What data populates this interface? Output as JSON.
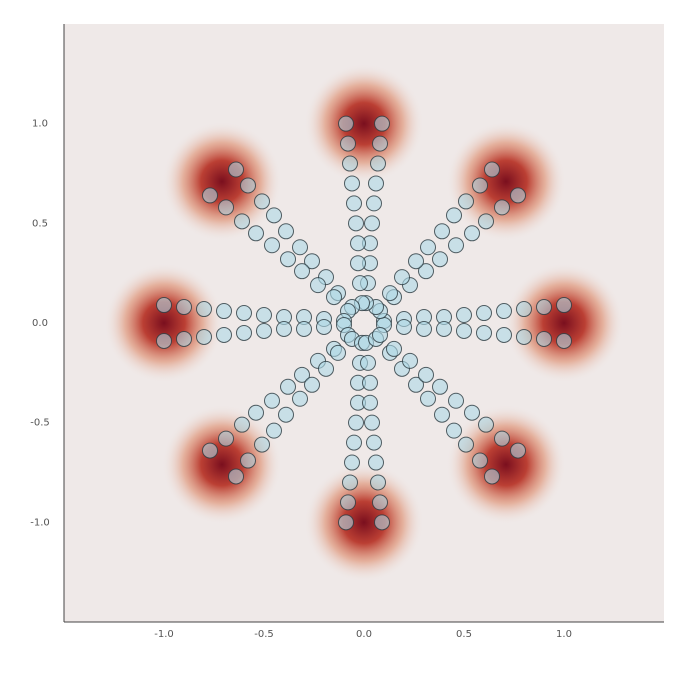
{
  "chart_data": {
    "type": "scatter",
    "xlim": [
      -1.5,
      1.5
    ],
    "ylim": [
      -1.5,
      1.5
    ],
    "xticks": [
      {
        "value": -1,
        "label": "-1.0"
      },
      -0.5,
      {
        "value": 0,
        "label": "0.0"
      },
      0.5,
      {
        "value": 1,
        "label": "1.0"
      }
    ],
    "yticks": [
      {
        "value": -1,
        "label": "-1.0"
      },
      -0.5,
      {
        "value": 0,
        "label": "0.0"
      },
      0.5,
      {
        "value": 1,
        "label": "1.0"
      }
    ],
    "grid": false,
    "background": "#efe9e8",
    "modes": {
      "color": "#7a0f1e",
      "x": [
        1,
        0.71,
        0,
        -0.71,
        -1,
        -0.71,
        0,
        0.71
      ],
      "y": [
        0,
        0.71,
        1,
        0.71,
        0,
        -0.71,
        -1,
        -0.71
      ]
    },
    "color": "#add8e6",
    "x": [
      0.1,
      0.2,
      0.3,
      0.4,
      0.5,
      0.6,
      0.7,
      0.8,
      0.9,
      1.0,
      0.1,
      0.2,
      0.3,
      0.4,
      0.5,
      0.6,
      0.7,
      0.8,
      0.9,
      1.0,
      0.08,
      0.15,
      0.23,
      0.31,
      0.38,
      0.46,
      0.54,
      0.61,
      0.69,
      0.77,
      0.06,
      0.13,
      0.19,
      0.26,
      0.32,
      0.39,
      0.45,
      0.51,
      0.58,
      0.64,
      0.01,
      0.02,
      0.03,
      0.03,
      0.04,
      0.05,
      0.06,
      0.07,
      0.08,
      0.09,
      -0.01,
      -0.02,
      -0.03,
      -0.03,
      -0.04,
      -0.05,
      -0.06,
      -0.07,
      -0.08,
      -0.09,
      -0.06,
      -0.13,
      -0.19,
      -0.26,
      -0.32,
      -0.39,
      -0.45,
      -0.51,
      -0.58,
      -0.64,
      -0.08,
      -0.15,
      -0.23,
      -0.31,
      -0.38,
      -0.46,
      -0.54,
      -0.61,
      -0.69,
      -0.77,
      -0.1,
      -0.2,
      -0.3,
      -0.4,
      -0.5,
      -0.6,
      -0.7,
      -0.8,
      -0.9,
      -1.0,
      -0.1,
      -0.2,
      -0.3,
      -0.4,
      -0.5,
      -0.6,
      -0.7,
      -0.8,
      -0.9,
      -1.0,
      -0.08,
      -0.15,
      -0.23,
      -0.31,
      -0.38,
      -0.46,
      -0.54,
      -0.61,
      -0.69,
      -0.77,
      -0.06,
      -0.13,
      -0.19,
      -0.26,
      -0.32,
      -0.39,
      -0.45,
      -0.51,
      -0.58,
      -0.64,
      -0.01,
      -0.02,
      -0.03,
      -0.03,
      -0.04,
      -0.05,
      -0.06,
      -0.07,
      -0.08,
      -0.09,
      0.01,
      0.02,
      0.03,
      0.03,
      0.04,
      0.05,
      0.06,
      0.07,
      0.08,
      0.09,
      0.06,
      0.13,
      0.19,
      0.26,
      0.32,
      0.39,
      0.45,
      0.51,
      0.58,
      0.64,
      0.08,
      0.15,
      0.23,
      0.31,
      0.38,
      0.46,
      0.54,
      0.61,
      0.69,
      0.77
    ],
    "y": [
      0.01,
      0.02,
      0.03,
      0.03,
      0.04,
      0.05,
      0.06,
      0.07,
      0.08,
      0.09,
      -0.01,
      -0.02,
      -0.03,
      -0.03,
      -0.04,
      -0.05,
      -0.06,
      -0.07,
      -0.08,
      -0.09,
      0.06,
      0.13,
      0.19,
      0.26,
      0.32,
      0.39,
      0.45,
      0.51,
      0.58,
      0.64,
      0.08,
      0.15,
      0.23,
      0.31,
      0.38,
      0.46,
      0.54,
      0.61,
      0.69,
      0.77,
      0.1,
      0.2,
      0.3,
      0.4,
      0.5,
      0.6,
      0.7,
      0.8,
      0.9,
      1.0,
      0.1,
      0.2,
      0.3,
      0.4,
      0.5,
      0.6,
      0.7,
      0.8,
      0.9,
      1.0,
      0.08,
      0.15,
      0.23,
      0.31,
      0.38,
      0.46,
      0.54,
      0.61,
      0.69,
      0.77,
      0.06,
      0.13,
      0.19,
      0.26,
      0.32,
      0.39,
      0.45,
      0.51,
      0.58,
      0.64,
      0.01,
      0.02,
      0.03,
      0.03,
      0.04,
      0.05,
      0.06,
      0.07,
      0.08,
      0.09,
      -0.01,
      -0.02,
      -0.03,
      -0.03,
      -0.04,
      -0.05,
      -0.06,
      -0.07,
      -0.08,
      -0.09,
      -0.06,
      -0.13,
      -0.19,
      -0.26,
      -0.32,
      -0.39,
      -0.45,
      -0.51,
      -0.58,
      -0.64,
      -0.08,
      -0.15,
      -0.23,
      -0.31,
      -0.38,
      -0.46,
      -0.54,
      -0.61,
      -0.69,
      -0.77,
      -0.1,
      -0.2,
      -0.3,
      -0.4,
      -0.5,
      -0.6,
      -0.7,
      -0.8,
      -0.9,
      -1.0,
      -0.1,
      -0.2,
      -0.3,
      -0.4,
      -0.5,
      -0.6,
      -0.7,
      -0.8,
      -0.9,
      -1.0,
      -0.08,
      -0.15,
      -0.23,
      -0.31,
      -0.38,
      -0.46,
      -0.54,
      -0.61,
      -0.69,
      -0.77,
      -0.06,
      -0.13,
      -0.19,
      -0.26,
      -0.32,
      -0.39,
      -0.45,
      -0.51,
      -0.58,
      -0.64
    ]
  }
}
